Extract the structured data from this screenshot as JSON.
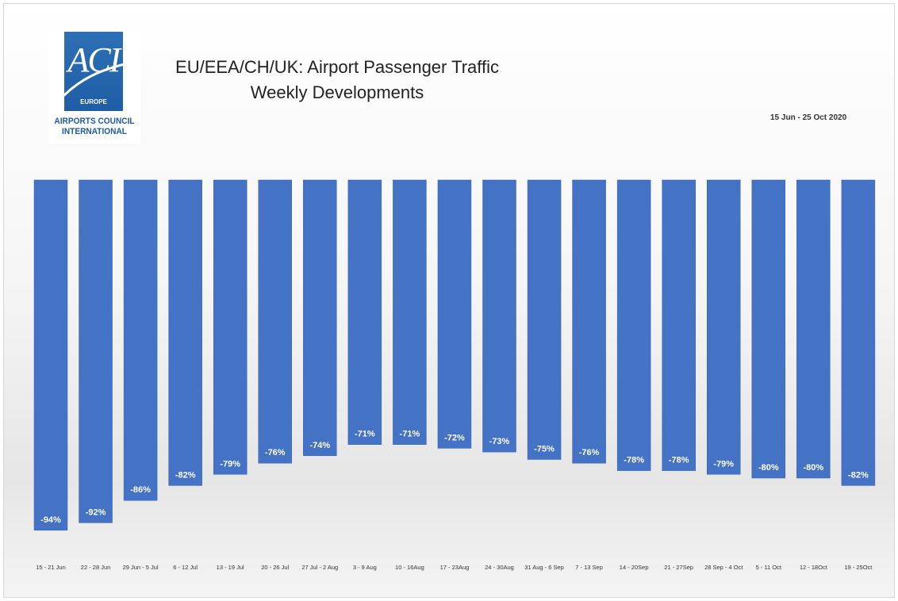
{
  "header": {
    "title_line1": "EU/EEA/CH/UK: Airport Passenger Traffic",
    "title_line2": "Weekly Developments",
    "date_range": "15 Jun - 25 Oct 2020"
  },
  "logo": {
    "letters": "ACI",
    "region": "EUROPE",
    "org_line1": "AIRPORTS COUNCIL",
    "org_line2": "INTERNATIONAL"
  },
  "colors": {
    "bar": "#4472c4",
    "bar_edge": "#3a63ad",
    "label_text": "#ffffff",
    "tick_text": "#333333"
  },
  "chart_data": {
    "type": "bar",
    "orientation": "vertical, bars hang down from zero",
    "categories": [
      "15 - 21 Jun",
      "22 - 28 Jun",
      "29 Jun - 5 Jul",
      "6 - 12 Jul",
      "13 - 19 Jul",
      "20 - 26 Jul",
      "27 Jul - 2 Aug",
      "3 - 9 Aug",
      "10 - 16Aug",
      "17 - 23Aug",
      "24 - 30Aug",
      "31 Aug - 6 Sep",
      "7 - 13 Sep",
      "14 - 20Sep",
      "21 - 27Sep",
      "28 Sep - 4 Oct",
      "5 - 11 Oct",
      "12 - 18Oct",
      "19 - 25Oct"
    ],
    "values": [
      -94,
      -92,
      -86,
      -82,
      -79,
      -76,
      -74,
      -71,
      -71,
      -72,
      -73,
      -75,
      -76,
      -78,
      -78,
      -79,
      -80,
      -80,
      -82
    ],
    "data_labels": [
      "-94%",
      "-92%",
      "-86%",
      "-82%",
      "-79%",
      "-76%",
      "-74%",
      "-71%",
      "-71%",
      "-72%",
      "-73%",
      "-75%",
      "-76%",
      "-78%",
      "-78%",
      "-79%",
      "-80%",
      "-80%",
      "-82%"
    ],
    "unit": "%",
    "title": "EU/EEA/CH/UK: Airport Passenger Traffic Weekly Developments",
    "xlabel": "",
    "ylabel": "",
    "ylim": [
      -100,
      0
    ],
    "grid": false,
    "legend": "none"
  }
}
